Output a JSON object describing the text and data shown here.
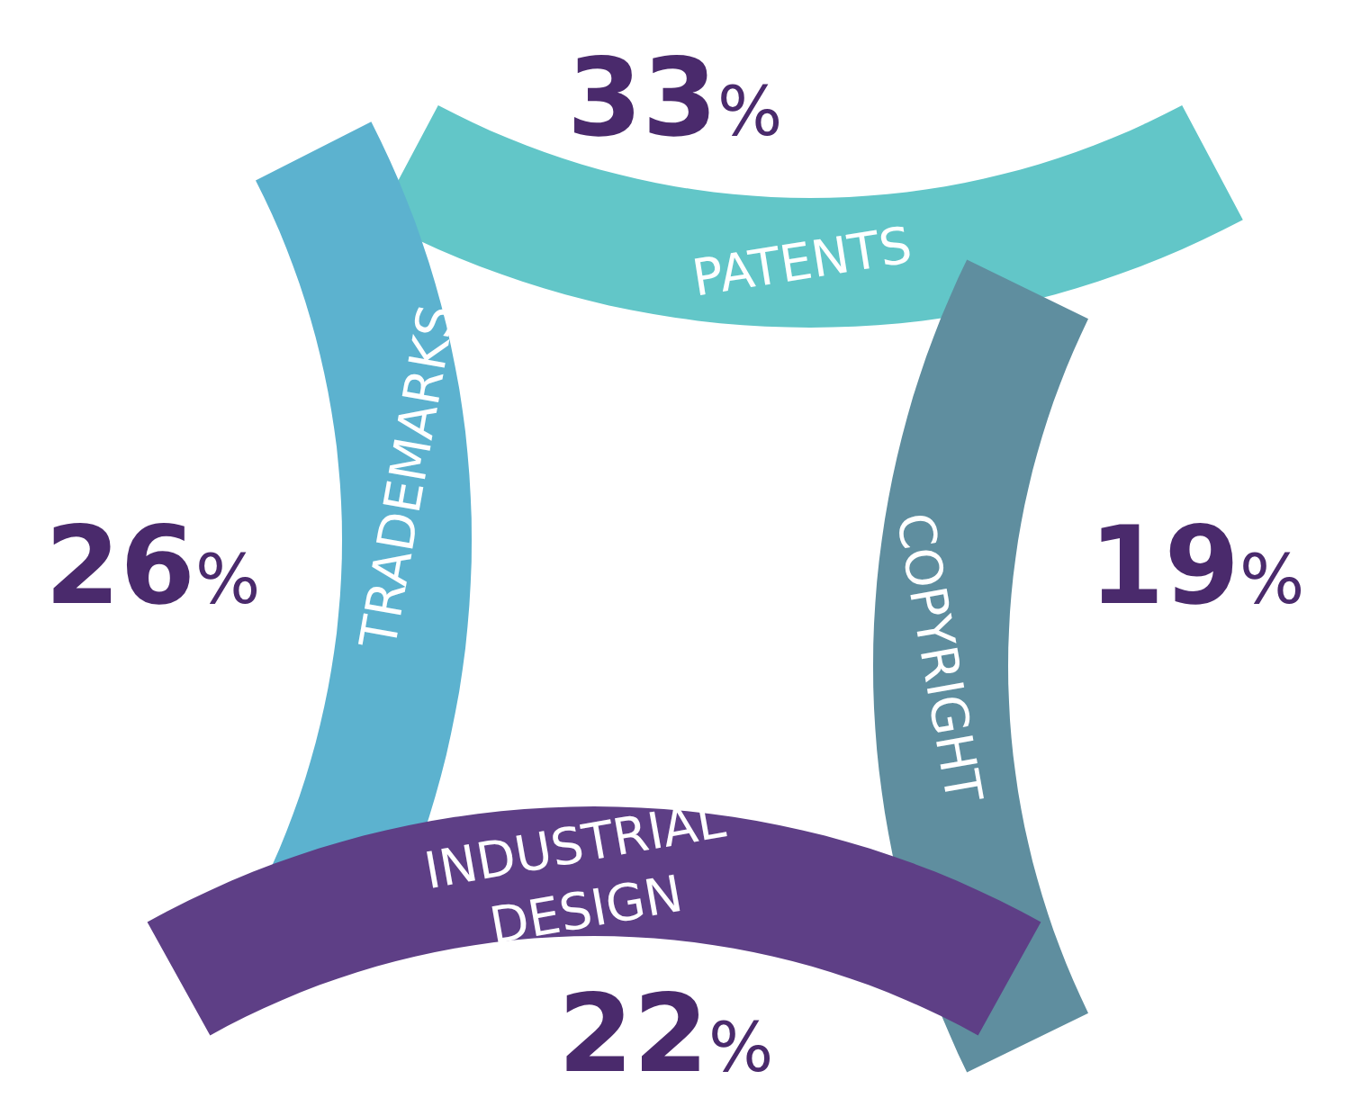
{
  "chart_data": {
    "type": "other",
    "categories": [
      "PATENTS",
      "TRADEMARKS",
      "COPYRIGHT",
      "INDUSTRIAL\nDESIGN"
    ],
    "values": [
      33,
      26,
      19,
      22
    ],
    "value_labels": [
      "33%",
      "26%",
      "19%",
      "22%"
    ],
    "colors": [
      "#62c6c8",
      "#5cb2cf",
      "#5f8e9f",
      "#5e3f86"
    ]
  }
}
